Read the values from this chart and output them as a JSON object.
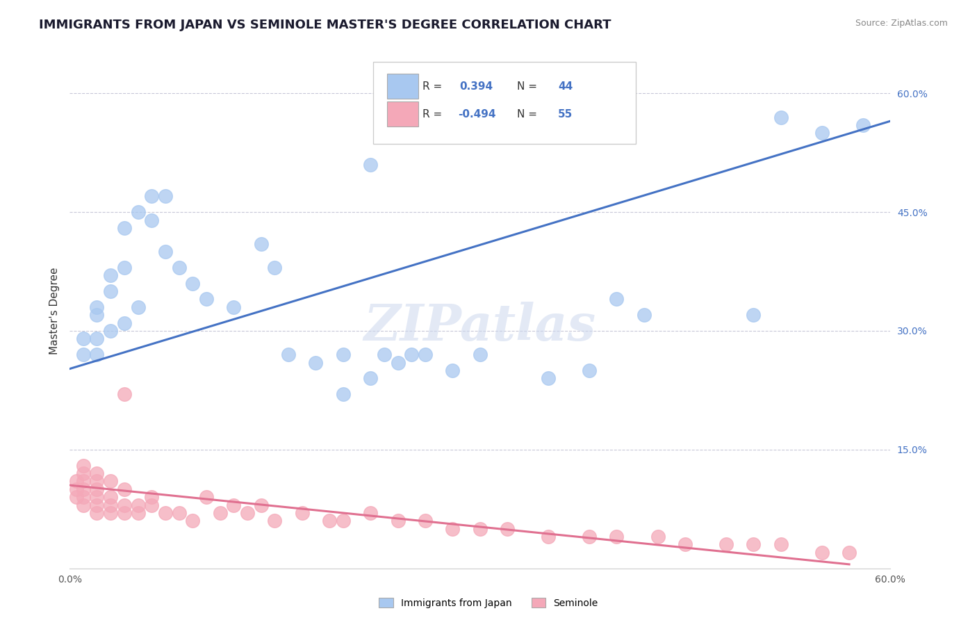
{
  "title": "IMMIGRANTS FROM JAPAN VS SEMINOLE MASTER'S DEGREE CORRELATION CHART",
  "source_text": "Source: ZipAtlas.com",
  "ylabel": "Master's Degree",
  "xmin": 0.0,
  "xmax": 0.6,
  "ymin": 0.0,
  "ymax": 0.65,
  "x_ticks": [
    0.0,
    0.1,
    0.2,
    0.3,
    0.4,
    0.5,
    0.6
  ],
  "x_tick_labels": [
    "0.0%",
    "",
    "",
    "",
    "",
    "",
    "60.0%"
  ],
  "y_ticks_right": [
    0.15,
    0.3,
    0.45,
    0.6
  ],
  "y_tick_labels_right": [
    "15.0%",
    "30.0%",
    "45.0%",
    "60.0%"
  ],
  "legend1_r": "0.394",
  "legend1_n": "44",
  "legend2_r": "-0.494",
  "legend2_n": "55",
  "blue_color": "#a8c8f0",
  "blue_line_color": "#4472c4",
  "pink_color": "#f4a8b8",
  "pink_line_color": "#e07090",
  "legend_label1": "Immigrants from Japan",
  "legend_label2": "Seminole",
  "blue_scatter_x": [
    0.01,
    0.01,
    0.02,
    0.02,
    0.02,
    0.02,
    0.03,
    0.03,
    0.03,
    0.04,
    0.04,
    0.04,
    0.05,
    0.05,
    0.06,
    0.06,
    0.07,
    0.07,
    0.08,
    0.09,
    0.1,
    0.12,
    0.14,
    0.15,
    0.16,
    0.18,
    0.2,
    0.22,
    0.23,
    0.24,
    0.25,
    0.26,
    0.28,
    0.3,
    0.35,
    0.38,
    0.4,
    0.42,
    0.2,
    0.22,
    0.5,
    0.52,
    0.55,
    0.58
  ],
  "blue_scatter_y": [
    0.27,
    0.29,
    0.27,
    0.29,
    0.32,
    0.33,
    0.3,
    0.35,
    0.37,
    0.31,
    0.38,
    0.43,
    0.33,
    0.45,
    0.44,
    0.47,
    0.47,
    0.4,
    0.38,
    0.36,
    0.34,
    0.33,
    0.41,
    0.38,
    0.27,
    0.26,
    0.27,
    0.51,
    0.27,
    0.26,
    0.27,
    0.27,
    0.25,
    0.27,
    0.24,
    0.25,
    0.34,
    0.32,
    0.22,
    0.24,
    0.32,
    0.57,
    0.55,
    0.56
  ],
  "pink_scatter_x": [
    0.005,
    0.005,
    0.005,
    0.01,
    0.01,
    0.01,
    0.01,
    0.01,
    0.01,
    0.02,
    0.02,
    0.02,
    0.02,
    0.02,
    0.02,
    0.03,
    0.03,
    0.03,
    0.03,
    0.04,
    0.04,
    0.04,
    0.04,
    0.05,
    0.05,
    0.06,
    0.06,
    0.07,
    0.08,
    0.09,
    0.1,
    0.11,
    0.12,
    0.13,
    0.14,
    0.15,
    0.17,
    0.19,
    0.2,
    0.22,
    0.24,
    0.26,
    0.28,
    0.3,
    0.32,
    0.35,
    0.38,
    0.4,
    0.43,
    0.45,
    0.48,
    0.5,
    0.52,
    0.55,
    0.57
  ],
  "pink_scatter_y": [
    0.09,
    0.1,
    0.11,
    0.08,
    0.09,
    0.1,
    0.11,
    0.12,
    0.13,
    0.07,
    0.08,
    0.09,
    0.1,
    0.11,
    0.12,
    0.07,
    0.08,
    0.09,
    0.11,
    0.07,
    0.08,
    0.1,
    0.22,
    0.07,
    0.08,
    0.08,
    0.09,
    0.07,
    0.07,
    0.06,
    0.09,
    0.07,
    0.08,
    0.07,
    0.08,
    0.06,
    0.07,
    0.06,
    0.06,
    0.07,
    0.06,
    0.06,
    0.05,
    0.05,
    0.05,
    0.04,
    0.04,
    0.04,
    0.04,
    0.03,
    0.03,
    0.03,
    0.03,
    0.02,
    0.02
  ],
  "blue_line_x": [
    0.0,
    0.6
  ],
  "blue_line_y_start": 0.252,
  "blue_line_y_end": 0.565,
  "pink_line_x": [
    0.0,
    0.57
  ],
  "pink_line_y_start": 0.105,
  "pink_line_y_end": 0.005,
  "watermark_text": "ZIPatlas",
  "background_color": "#ffffff",
  "grid_color": "#c8c8d8",
  "title_color": "#1a1a2e",
  "title_fontsize": 13,
  "axis_label_fontsize": 11,
  "tick_fontsize": 10,
  "source_fontsize": 9,
  "figsize": [
    14.06,
    8.92
  ],
  "dpi": 100
}
